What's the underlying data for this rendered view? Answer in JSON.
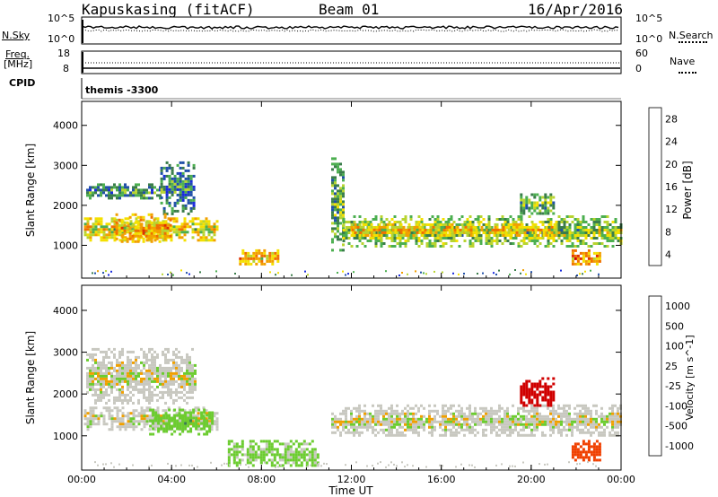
{
  "header": {
    "station": "Kapuskasing (fitACF)",
    "beam": "Beam 01",
    "date": "16/Apr/2016"
  },
  "top_panels": {
    "nsky_label": "N.Sky",
    "nsearch_label": "N.Search",
    "noise_ticks_left": [
      "10^5",
      "10^0"
    ],
    "noise_ticks_right": [
      "10^5",
      "10^0"
    ],
    "freq_label": "Freq.",
    "freq_unit": "[MHz]",
    "freq_ticks": [
      "18",
      "8"
    ],
    "nave_label": "Nave",
    "nave_ticks": [
      "60",
      "0"
    ],
    "cpid_label": "CPID",
    "cpid_value": "themis -3300"
  },
  "colors": {
    "power_scale": [
      "#1a2bdc",
      "#2050a8",
      "#3a7d4a",
      "#4caf50",
      "#b8d430",
      "#f4e000",
      "#f2a000",
      "#f07000",
      "#e03000",
      "#d00000"
    ],
    "velocity_scale": [
      "#1030c0",
      "#2a58a8",
      "#3a7d50",
      "#6ccc30",
      "#c8c8c0",
      "#f0a000",
      "#f07010",
      "#f04000",
      "#d00000"
    ]
  },
  "chart_data": [
    {
      "type": "heatmap",
      "panel": "power",
      "ylabel": "Slant Range [km]",
      "ylim": [
        180,
        4600
      ],
      "yticks": [
        "1000",
        "2000",
        "3000",
        "4000"
      ],
      "xticks": [
        "00:00",
        "04:00",
        "08:00",
        "12:00",
        "16:00",
        "20:00",
        "00:00"
      ],
      "xlim_hours": [
        0,
        24
      ],
      "colorbar_label": "Power [dB]",
      "colorbar_ticks": [
        "4",
        "8",
        "12",
        "16",
        "20",
        "24",
        "28"
      ],
      "colorbar_range": [
        0,
        30
      ],
      "bands": [
        {
          "t0": 0.1,
          "t1": 6.0,
          "r0": 1150,
          "r1": 1700,
          "value": 16
        },
        {
          "t0": 0.2,
          "t1": 3.5,
          "r0": 2200,
          "r1": 2550,
          "value": 8
        },
        {
          "t0": 3.5,
          "t1": 5.0,
          "r0": 1800,
          "r1": 3100,
          "value": 7
        },
        {
          "t0": 1.5,
          "t1": 4.0,
          "r0": 1100,
          "r1": 1800,
          "value": 19
        },
        {
          "t0": 7.0,
          "t1": 8.7,
          "r0": 500,
          "r1": 900,
          "value": 18
        },
        {
          "t0": 11.1,
          "t1": 11.6,
          "r0": 900,
          "r1": 3200,
          "value": 10
        },
        {
          "t0": 11.6,
          "t1": 24.0,
          "r0": 1000,
          "r1": 1750,
          "value": 12
        },
        {
          "t0": 12.0,
          "t1": 21.0,
          "r0": 1250,
          "r1": 1550,
          "value": 17
        },
        {
          "t0": 21.8,
          "t1": 23.0,
          "r0": 500,
          "r1": 900,
          "value": 20
        },
        {
          "t0": 19.5,
          "t1": 21.0,
          "r0": 1800,
          "r1": 2300,
          "value": 10
        }
      ]
    },
    {
      "type": "heatmap",
      "panel": "velocity",
      "ylabel": "Slant Range [km]",
      "ylim": [
        180,
        4600
      ],
      "yticks": [
        "1000",
        "2000",
        "3000",
        "4000"
      ],
      "xticks": [
        "00:00",
        "04:00",
        "08:00",
        "12:00",
        "16:00",
        "20:00",
        "00:00"
      ],
      "xlabel": "Time UT",
      "xlim_hours": [
        0,
        24
      ],
      "colorbar_label": "Velocity [m s^-1]",
      "colorbar_ticks": [
        "1000",
        "500",
        "100",
        "25",
        "-25",
        "-100",
        "-500",
        "-1000"
      ],
      "bands": [
        {
          "t0": 0.1,
          "t1": 6.0,
          "r0": 1150,
          "r1": 1700,
          "value": 0
        },
        {
          "t0": 0.2,
          "t1": 5.0,
          "r0": 1800,
          "r1": 3100,
          "value": 0
        },
        {
          "t0": 3.0,
          "t1": 5.8,
          "r0": 1050,
          "r1": 1650,
          "value": 60
        },
        {
          "t0": 6.5,
          "t1": 10.5,
          "r0": 300,
          "r1": 900,
          "value": 40
        },
        {
          "t0": 11.1,
          "t1": 24.0,
          "r0": 1000,
          "r1": 1750,
          "value": 0
        },
        {
          "t0": 19.5,
          "t1": 21.0,
          "r0": 1700,
          "r1": 2400,
          "value": -800
        },
        {
          "t0": 21.8,
          "t1": 23.0,
          "r0": 400,
          "r1": 900,
          "value": -300
        }
      ]
    }
  ]
}
